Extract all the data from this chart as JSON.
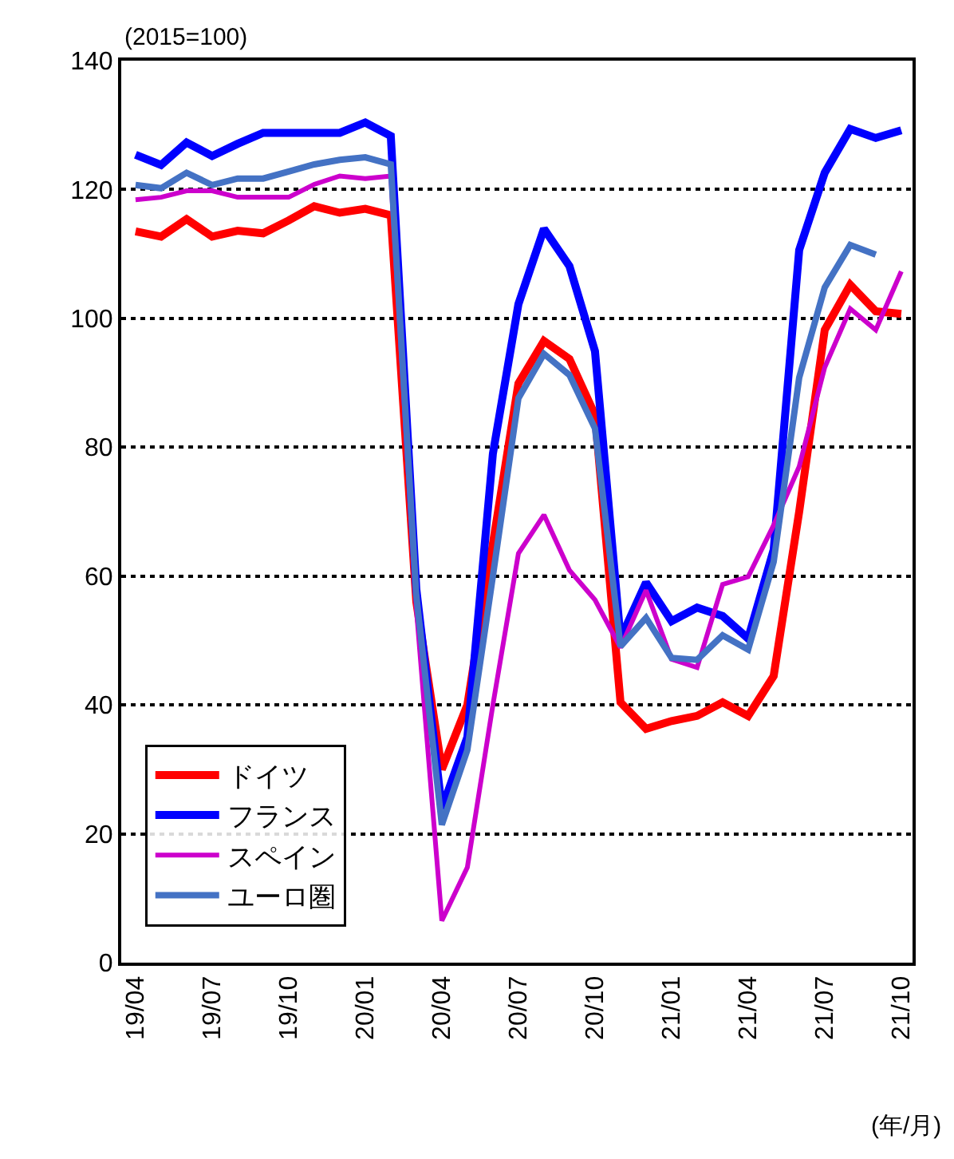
{
  "chart_data": {
    "type": "line",
    "ylabel": "(2015=100)",
    "xlabel": "(年/月)",
    "categories": [
      "19/04",
      null,
      null,
      "19/07",
      null,
      null,
      "19/10",
      null,
      null,
      "20/01",
      null,
      null,
      "20/04",
      null,
      null,
      "20/07",
      null,
      null,
      "20/10",
      null,
      null,
      "21/01",
      null,
      null,
      "21/04",
      null,
      null,
      "21/07",
      null,
      null,
      "21/10"
    ],
    "series": [
      {
        "name": "ドイツ",
        "color": "#ff0000",
        "values": [
          113.5,
          112.7,
          115.4,
          112.7,
          113.6,
          113.2,
          115.2,
          117.4,
          116.4,
          117,
          116,
          56,
          30,
          40,
          65,
          89.9,
          96.5,
          93.7,
          85,
          40.4,
          36.3,
          37.5,
          38.3,
          40.4,
          38.3,
          44.5,
          70,
          98.2,
          105.2,
          101.1,
          100.7
        ]
      },
      {
        "name": "フランス",
        "color": "#0000ff",
        "values": [
          125.4,
          123.8,
          127.3,
          125.2,
          127.1,
          128.8,
          128.8,
          128.8,
          128.8,
          130.4,
          128.3,
          58,
          23.9,
          35,
          79,
          102.2,
          113.9,
          108.1,
          94.9,
          50.3,
          59,
          53,
          55.1,
          53.8,
          50.3,
          64.1,
          110.6,
          122.6,
          129.4,
          128,
          129.2
        ]
      },
      {
        "name": "スペイン",
        "color": "#cc00cc",
        "values": [
          118.4,
          118.8,
          119.8,
          119.8,
          118.8,
          118.8,
          118.8,
          120.8,
          122.1,
          121.7,
          122.1,
          55,
          6.5,
          14.8,
          40,
          63.5,
          69.5,
          60.9,
          56.3,
          48.9,
          57.8,
          47.1,
          45.8,
          58.7,
          59.9,
          67.9,
          77,
          92.4,
          101.5,
          98.2,
          107.3
        ]
      },
      {
        "name": "ユーロ圏",
        "color": "#4472c4",
        "values": [
          120.7,
          120.2,
          122.6,
          120.7,
          121.7,
          121.7,
          122.8,
          123.9,
          124.6,
          125,
          123.9,
          57,
          21.4,
          33,
          60,
          87.6,
          94.5,
          91.2,
          82.9,
          49.1,
          53.5,
          47.3,
          47,
          50.8,
          48.6,
          62.2,
          90.8,
          104.8,
          111.4,
          109.9,
          null
        ]
      }
    ],
    "ylim": [
      0,
      140
    ],
    "yticks": [
      0,
      20,
      40,
      60,
      80,
      100,
      120,
      140
    ],
    "grid": "y",
    "legend": "bottom left",
    "line_style": "solid",
    "marker": "none"
  }
}
